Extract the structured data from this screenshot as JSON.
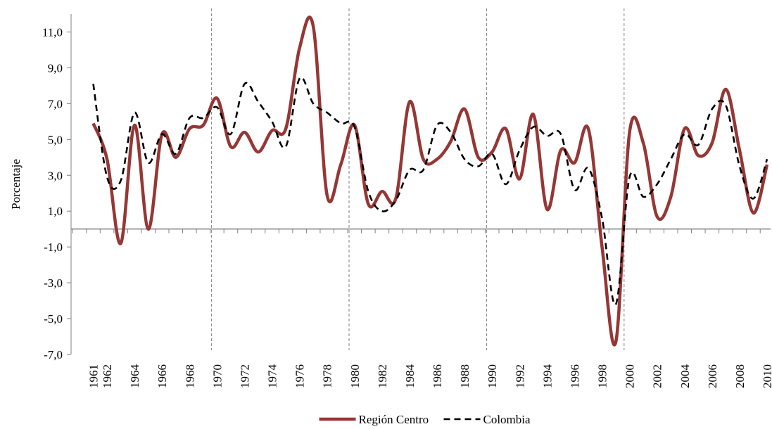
{
  "chart_data": {
    "type": "line",
    "y_label": "Porcentaje",
    "categories": [
      null,
      "1961",
      "1962",
      null,
      "1964",
      null,
      "1966",
      null,
      "1968",
      null,
      "1970",
      null,
      "1972",
      null,
      "1974",
      null,
      "1976",
      null,
      "1978",
      null,
      "1980",
      null,
      "1982",
      null,
      "1984",
      null,
      "1986",
      null,
      "1988",
      null,
      "1990",
      null,
      "1992",
      null,
      "1994",
      null,
      "1996",
      null,
      "1998",
      null,
      "2000",
      null,
      "2002",
      null,
      "2004",
      null,
      "2006",
      null,
      "2008",
      null,
      "2010"
    ],
    "series": [
      {
        "name": "Región Centro",
        "color": "#953735",
        "dash": false,
        "values": [
          null,
          5.9,
          3.9,
          -0.8,
          5.8,
          0.0,
          5.3,
          4.0,
          5.6,
          5.8,
          7.3,
          4.6,
          5.4,
          4.3,
          5.5,
          5.6,
          10.1,
          11.3,
          1.9,
          3.6,
          5.8,
          1.4,
          2.1,
          1.7,
          7.1,
          3.9,
          3.9,
          4.9,
          6.7,
          4.0,
          4.3,
          5.6,
          2.8,
          6.4,
          1.1,
          4.4,
          3.7,
          5.6,
          -1.0,
          -6.3,
          5.4,
          4.8,
          0.7,
          1.8,
          5.6,
          4.1,
          4.8,
          7.8,
          4.4,
          0.9,
          3.6
        ]
      },
      {
        "name": "Colombia",
        "color": "#000000",
        "dash": true,
        "values": [
          null,
          8.1,
          2.9,
          2.7,
          6.5,
          3.7,
          5.3,
          4.2,
          6.2,
          6.2,
          6.8,
          5.3,
          8.1,
          7.1,
          6.0,
          4.6,
          8.4,
          7.0,
          6.5,
          5.9,
          5.7,
          2.1,
          1.0,
          1.6,
          3.3,
          3.3,
          5.8,
          5.4,
          3.9,
          3.5,
          4.2,
          2.5,
          4.4,
          5.7,
          5.2,
          5.3,
          2.2,
          3.4,
          0.6,
          -4.2,
          2.9,
          1.8,
          2.5,
          3.9,
          5.3,
          4.7,
          6.7,
          6.9,
          3.5,
          1.7,
          3.9
        ]
      }
    ],
    "ylim": [
      -7,
      12
    ],
    "yticks": [
      {
        "value": -7,
        "label": "-7,0"
      },
      {
        "value": -5,
        "label": "-5,0"
      },
      {
        "value": -3,
        "label": "-3,0"
      },
      {
        "value": -1,
        "label": "-1,0"
      },
      {
        "value": 1,
        "label": "1,0"
      },
      {
        "value": 3,
        "label": "3,0"
      },
      {
        "value": 5,
        "label": "5,0"
      },
      {
        "value": 7,
        "label": "7,0"
      },
      {
        "value": 9,
        "label": "9,0"
      },
      {
        "value": 11,
        "label": "11,0"
      }
    ],
    "vlines": [
      10,
      20,
      30,
      40
    ],
    "legend": "bottom"
  }
}
